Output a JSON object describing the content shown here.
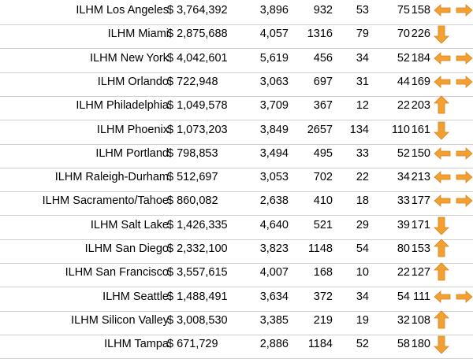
{
  "table": {
    "rows": [
      {
        "name": "ILHM Los Angeles",
        "revenue": "$ 3,764,392",
        "n1": "3,896",
        "n2": "932",
        "n3": "53",
        "n4": "75",
        "n5": "158",
        "trend": "flat"
      },
      {
        "name": "ILHM Miami",
        "revenue": "$ 2,875,688",
        "n1": "4,057",
        "n2": "1316",
        "n3": "79",
        "n4": "70",
        "n5": "226",
        "trend": "down"
      },
      {
        "name": "ILHM New York",
        "revenue": "$ 4,042,601",
        "n1": "5,619",
        "n2": "456",
        "n3": "34",
        "n4": "52",
        "n5": "184",
        "trend": "flat"
      },
      {
        "name": "ILHM Orlando",
        "revenue": "$ 722,948",
        "n1": "3,063",
        "n2": "697",
        "n3": "31",
        "n4": "44",
        "n5": "169",
        "trend": "flat"
      },
      {
        "name": "ILHM Philadelphia",
        "revenue": "$ 1,049,578",
        "n1": "3,709",
        "n2": "367",
        "n3": "12",
        "n4": "22",
        "n5": "203",
        "trend": "up"
      },
      {
        "name": "ILHM Phoenix",
        "revenue": "$ 1,073,203",
        "n1": "3,849",
        "n2": "2657",
        "n3": "134",
        "n4": "110",
        "n5": "161",
        "trend": "down"
      },
      {
        "name": "ILHM Portland",
        "revenue": "$ 798,853",
        "n1": "3,494",
        "n2": "495",
        "n3": "33",
        "n4": "52",
        "n5": "150",
        "trend": "flat"
      },
      {
        "name": "ILHM Raleigh-Durham",
        "revenue": "$ 512,697",
        "n1": "3,053",
        "n2": "702",
        "n3": "22",
        "n4": "34",
        "n5": "213",
        "trend": "flat"
      },
      {
        "name": "ILHM Sacramento/Tahoe",
        "revenue": "$ 860,082",
        "n1": "2,638",
        "n2": "410",
        "n3": "18",
        "n4": "33",
        "n5": "177",
        "trend": "flat"
      },
      {
        "name": "ILHM Salt Lake",
        "revenue": "$ 1,426,335",
        "n1": "4,640",
        "n2": "521",
        "n3": "29",
        "n4": "39",
        "n5": "171",
        "trend": "down"
      },
      {
        "name": "ILHM San Diego",
        "revenue": "$ 2,332,100",
        "n1": "3,823",
        "n2": "1148",
        "n3": "54",
        "n4": "80",
        "n5": "153",
        "trend": "up"
      },
      {
        "name": "ILHM San Francisco",
        "revenue": "$ 3,557,615",
        "n1": "4,007",
        "n2": "168",
        "n3": "10",
        "n4": "22",
        "n5": "127",
        "trend": "up"
      },
      {
        "name": "ILHM Seattle",
        "revenue": "$ 1,488,491",
        "n1": "3,634",
        "n2": "372",
        "n3": "34",
        "n4": "54",
        "n5": "111",
        "trend": "flat"
      },
      {
        "name": "ILHM Silicon Valley",
        "revenue": "$ 3,008,530",
        "n1": "3,385",
        "n2": "219",
        "n3": "19",
        "n4": "32",
        "n5": "108",
        "trend": "up"
      },
      {
        "name": "ILHM Tampa",
        "revenue": "$ 671,729",
        "n1": "2,886",
        "n2": "1184",
        "n3": "52",
        "n4": "58",
        "n5": "180",
        "trend": "down"
      }
    ]
  },
  "colors": {
    "arrow_fill": "#f2a033",
    "arrow_stroke": "#d9821a",
    "row_border": "#cfcfcf"
  }
}
